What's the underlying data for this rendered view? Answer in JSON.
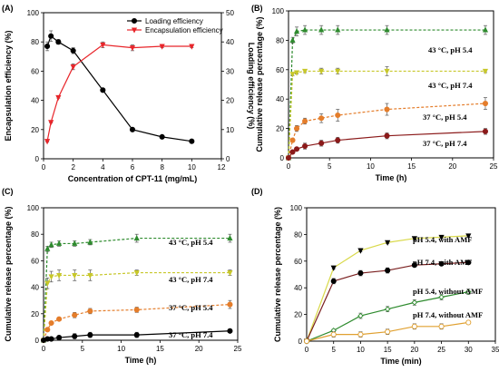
{
  "chart_data": [
    {
      "panel": "(A)",
      "type": "line",
      "xlabel": "Concentration of CPT-11 (mg/mL)",
      "ylabel": "Encapsulation efficiency (%)",
      "ylabel_right": "Loading efficiency (%)",
      "xlim": [
        0,
        12
      ],
      "ylim": [
        0,
        100
      ],
      "ylim_right": [
        0,
        50
      ],
      "xticks": [
        "0",
        "2",
        "4",
        "6",
        "8",
        "10",
        "12"
      ],
      "yticks": [
        "0",
        "20",
        "40",
        "60",
        "80",
        "100"
      ],
      "yticks_right": [
        "0",
        "10",
        "20",
        "30",
        "40",
        "50"
      ],
      "legend_position": "top-right",
      "series": [
        {
          "name": "Loading efficiency",
          "axis": "right",
          "color": "#000000",
          "marker": "circle",
          "x": [
            0.25,
            0.5,
            1,
            2,
            4,
            6,
            8,
            10
          ],
          "y": [
            38.5,
            42.0,
            40.0,
            37.0,
            23.5,
            10.0,
            7.5,
            6.0
          ],
          "err": [
            1.5,
            1.8,
            0.8,
            1.0,
            0.5,
            0.5,
            0.3,
            0.3
          ]
        },
        {
          "name": "Encapsulation efficiency",
          "axis": "left",
          "color": "#e8252a",
          "marker": "triangle-down",
          "x": [
            0.25,
            0.5,
            1,
            2,
            4,
            6,
            8,
            10
          ],
          "y": [
            12,
            25,
            42,
            63,
            78,
            76,
            77,
            77
          ],
          "err": [
            0.5,
            0.5,
            0.5,
            2.0,
            2.0,
            2.0,
            1.0,
            1.0
          ]
        }
      ]
    },
    {
      "panel": "(B)",
      "type": "line",
      "xlabel": "Time (h)",
      "ylabel": "Cumulative release percentage (%)",
      "xlim": [
        0,
        25
      ],
      "ylim": [
        0,
        100
      ],
      "xticks": [
        "0",
        "5",
        "10",
        "15",
        "20",
        "25"
      ],
      "yticks": [
        "0",
        "20",
        "40",
        "60",
        "80",
        "100"
      ],
      "series": [
        {
          "name": "43 °C, pH 5.4",
          "color": "#2e8b2e",
          "marker": "triangle-up",
          "dashed": true,
          "x": [
            0,
            0.5,
            1,
            2,
            4,
            6,
            12,
            24
          ],
          "y": [
            0,
            80,
            86,
            87,
            87,
            87,
            87,
            87
          ],
          "err": [
            0,
            2,
            3,
            3,
            3,
            3,
            3,
            3
          ]
        },
        {
          "name": "43 °C, pH 7.4",
          "color": "#c7c72a",
          "marker": "triangle-down",
          "dashed": true,
          "x": [
            0,
            0.5,
            1,
            2,
            4,
            6,
            12,
            24
          ],
          "y": [
            0,
            57,
            58,
            59,
            59,
            59,
            59,
            59
          ],
          "err": [
            0,
            1,
            1,
            1,
            2,
            2,
            3,
            1
          ]
        },
        {
          "name": "37 °C, pH 5.4",
          "color": "#e47d2b",
          "marker": "circle",
          "dashed": true,
          "x": [
            0,
            0.5,
            1,
            2,
            4,
            6,
            12,
            24
          ],
          "y": [
            0,
            12,
            20,
            25,
            27,
            29,
            33,
            37
          ],
          "err": [
            0,
            1,
            2,
            2,
            3,
            4,
            4,
            4
          ]
        },
        {
          "name": "37 °C, pH 7.4",
          "color": "#8b1a1a",
          "marker": "circle",
          "dashed": false,
          "x": [
            0,
            0.5,
            1,
            2,
            4,
            6,
            12,
            24
          ],
          "y": [
            0,
            4,
            6,
            8,
            10,
            12,
            15,
            18
          ],
          "err": [
            0,
            1,
            1,
            2,
            2,
            2,
            2,
            2
          ]
        }
      ]
    },
    {
      "panel": "(C)",
      "type": "line",
      "xlabel": "Time (h)",
      "ylabel": "Cumulative release percentage (%)",
      "xlim": [
        0,
        25
      ],
      "ylim": [
        0,
        100
      ],
      "xticks": [
        "0",
        "5",
        "10",
        "15",
        "20",
        "25"
      ],
      "yticks": [
        "0",
        "20",
        "40",
        "60",
        "80",
        "100"
      ],
      "series": [
        {
          "name": "43 °C, pH 5.4",
          "color": "#2e8b2e",
          "marker": "triangle-up",
          "dashed": true,
          "x": [
            0,
            0.5,
            1,
            2,
            4,
            6,
            12,
            24
          ],
          "y": [
            0,
            69,
            72,
            73,
            73,
            74,
            77,
            77
          ],
          "err": [
            0,
            2,
            2,
            2,
            2,
            2,
            3,
            3
          ]
        },
        {
          "name": "43 °C, pH 7.4",
          "color": "#c7c72a",
          "marker": "triangle-down",
          "dashed": true,
          "x": [
            0,
            0.5,
            1,
            2,
            4,
            6,
            12,
            24
          ],
          "y": [
            0,
            43,
            48,
            49,
            49,
            49,
            51,
            51
          ],
          "err": [
            0,
            4,
            4,
            4,
            4,
            4,
            2,
            2
          ]
        },
        {
          "name": "37 °C, pH 5.4",
          "color": "#e47d2b",
          "marker": "circle",
          "dashed": true,
          "x": [
            0,
            0.5,
            1,
            2,
            4,
            6,
            12,
            24
          ],
          "y": [
            0,
            8,
            13,
            16,
            19,
            22,
            23,
            27
          ],
          "err": [
            0,
            1,
            1,
            1,
            2,
            2,
            2,
            3
          ]
        },
        {
          "name": "37 °C, pH 7.4",
          "color": "#000000",
          "marker": "circle",
          "dashed": false,
          "x": [
            0,
            0.5,
            1,
            2,
            4,
            6,
            12,
            24
          ],
          "y": [
            0,
            1,
            1,
            2,
            3,
            4,
            4,
            7
          ],
          "err": [
            0,
            0.5,
            1,
            1,
            2,
            2,
            2,
            1
          ]
        }
      ]
    },
    {
      "panel": "(D)",
      "type": "line",
      "xlabel": "Time (min)",
      "ylabel": "Cumulative release percentage (%)",
      "xlim": [
        0,
        35
      ],
      "ylim": [
        0,
        100
      ],
      "xticks": [
        "0",
        "5",
        "10",
        "15",
        "20",
        "25",
        "30",
        "35"
      ],
      "yticks": [
        "0",
        "20",
        "40",
        "60",
        "80",
        "100"
      ],
      "series": [
        {
          "name": "pH 5.4, with AMF",
          "color": "#000000",
          "line_color": "#d9d94a",
          "marker": "triangle-down",
          "dashed": false,
          "x": [
            0,
            5,
            10,
            15,
            20,
            25,
            30
          ],
          "y": [
            0,
            55,
            68,
            74,
            77,
            78,
            79
          ],
          "err": [
            0,
            1,
            1,
            1,
            1,
            1,
            1
          ]
        },
        {
          "name": "pH 7.4, with AMF",
          "color": "#000000",
          "line_color": "#7a1f1f",
          "marker": "circle",
          "dashed": false,
          "x": [
            0,
            5,
            10,
            15,
            20,
            25,
            30
          ],
          "y": [
            0,
            45,
            51,
            53,
            57,
            58,
            59
          ],
          "err": [
            0,
            2,
            2,
            2,
            1,
            1,
            1
          ]
        },
        {
          "name": "pH 5.4, without AMF",
          "color": "#2e8b2e",
          "marker": "diamond-open",
          "dashed": false,
          "x": [
            0,
            5,
            10,
            15,
            20,
            25,
            30
          ],
          "y": [
            0,
            8,
            19,
            24,
            29,
            33,
            37
          ],
          "err": [
            0,
            1,
            2,
            2,
            2,
            2,
            2
          ]
        },
        {
          "name": "pH 7.4, without AMF",
          "color": "#e0a030",
          "marker": "circle-open",
          "dashed": false,
          "x": [
            0,
            5,
            10,
            15,
            20,
            25,
            30
          ],
          "y": [
            0,
            5,
            5,
            7,
            11,
            11,
            14
          ],
          "err": [
            0,
            2,
            2,
            2,
            2,
            2,
            1
          ]
        }
      ]
    }
  ]
}
